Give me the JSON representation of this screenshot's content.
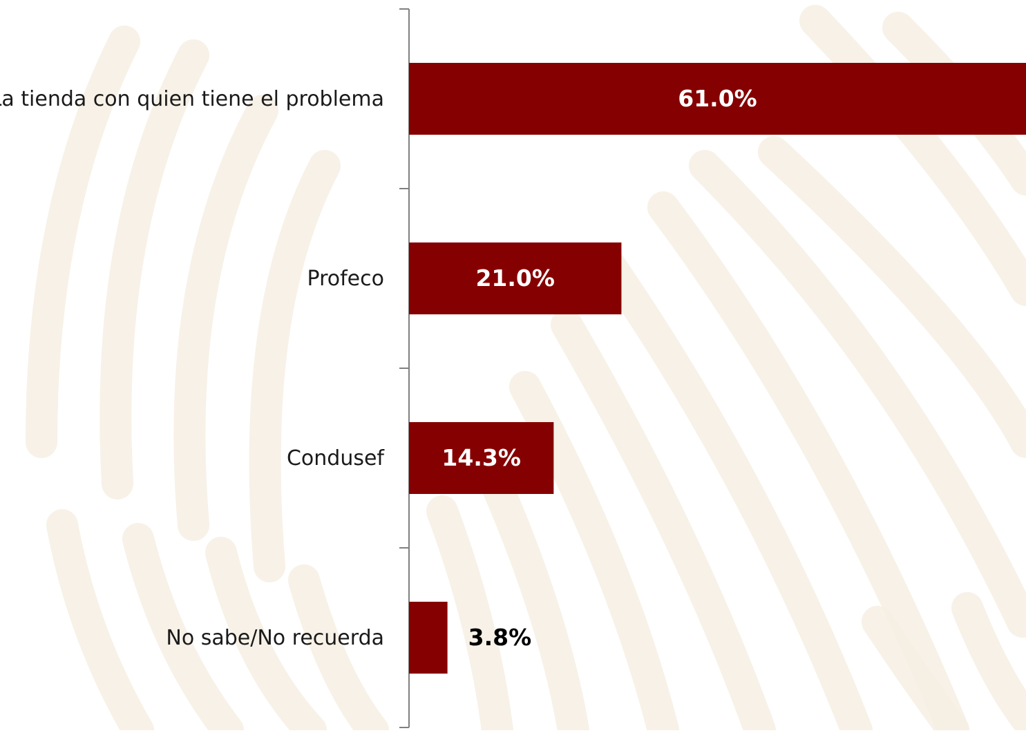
{
  "chart_data": {
    "type": "bar",
    "orientation": "horizontal",
    "categories": [
      "La tienda con quien tiene el problema",
      "Profeco",
      "Condusef",
      "No sabe/No recuerda"
    ],
    "values": [
      61.0,
      21.0,
      14.3,
      3.8
    ],
    "value_labels": [
      "61.0%",
      "21.0%",
      "14.3%",
      "3.8%"
    ],
    "unit": "%",
    "xlim": [
      0,
      61.0
    ],
    "grid": false,
    "legend": "none"
  },
  "colors": {
    "bar": "#850000",
    "label_inside": "#ffffff",
    "label_outside": "#000000",
    "axis": "#808080",
    "category_text": "#1a1a1a",
    "background": "#ffffff",
    "watermark": "#f6efe3"
  }
}
